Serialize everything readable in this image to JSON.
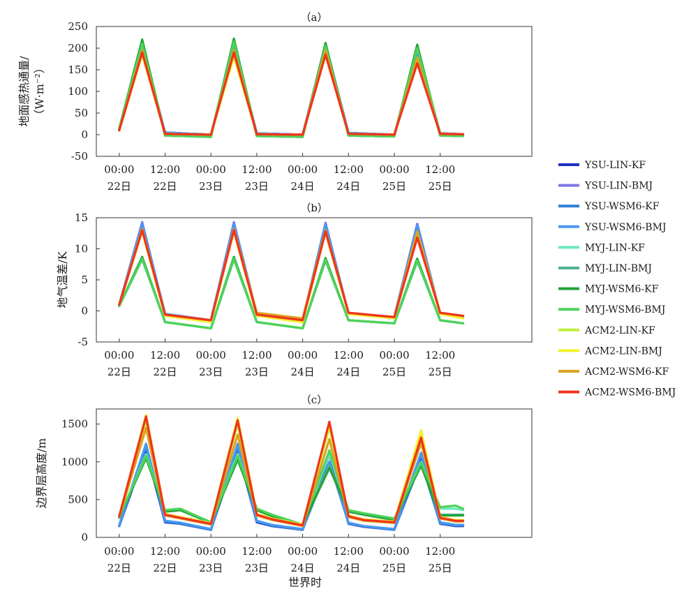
{
  "figure": {
    "xlabel": "世界时",
    "colors": {
      "YSU-LIN-KF": "#1f2fbf",
      "YSU-LIN-BMJ": "#7b78e6",
      "YSU-WSM6-KF": "#2f7fd6",
      "YSU-WSM6-BMJ": "#4a98f0",
      "MYJ-LIN-KF": "#6ee8c0",
      "MYJ-LIN-BMJ": "#52b090",
      "MYJ-WSM6-KF": "#22a33a",
      "MYJ-WSM6-BMJ": "#4ed35a",
      "ACM2-LIN-KF": "#bff03a",
      "ACM2-LIN-BMJ": "#f2f22e",
      "ACM2-WSM6-KF": "#dba420",
      "ACM2-WSM6-BMJ": "#f0341c"
    }
  },
  "legend": {
    "placement": "right",
    "entries": [
      "YSU-LIN-KF",
      "YSU-LIN-BMJ",
      "YSU-WSM6-KF",
      "YSU-WSM6-BMJ",
      "MYJ-LIN-KF",
      "MYJ-LIN-BMJ",
      "MYJ-WSM6-KF",
      "MYJ-WSM6-BMJ",
      "ACM2-LIN-KF",
      "ACM2-LIN-BMJ",
      "ACM2-WSM6-KF",
      "ACM2-WSM6-BMJ"
    ]
  },
  "chart_data": [
    {
      "type": "line",
      "title": "（a）",
      "ylabel_lines": [
        "地面感热通量/",
        "（W·m⁻²）"
      ],
      "ylim": [
        -50,
        250
      ],
      "yticks": [
        -50,
        0,
        50,
        100,
        150,
        200,
        250
      ],
      "xlim": [
        -6,
        108
      ],
      "xticks": [
        0,
        12,
        24,
        36,
        48,
        60,
        72,
        84
      ],
      "xtick_labels": [
        [
          "00:00",
          "22日"
        ],
        [
          "12:00",
          "22日"
        ],
        [
          "00:00",
          "23日"
        ],
        [
          "12:00",
          "23日"
        ],
        [
          "00:00",
          "24日"
        ],
        [
          "12:00",
          "24日"
        ],
        [
          "00:00",
          "25日"
        ],
        [
          "12:00",
          "25日"
        ]
      ],
      "x": [
        0,
        6,
        12,
        24,
        30,
        36,
        48,
        54,
        60,
        72,
        78,
        84,
        90
      ],
      "series": [
        {
          "name": "YSU-LIN-KF",
          "values": [
            12,
            200,
            5,
            0,
            205,
            3,
            0,
            205,
            4,
            0,
            190,
            3,
            1
          ]
        },
        {
          "name": "YSU-LIN-BMJ",
          "values": [
            12,
            205,
            5,
            0,
            210,
            3,
            0,
            210,
            4,
            0,
            195,
            3,
            1
          ]
        },
        {
          "name": "YSU-WSM6-KF",
          "values": [
            12,
            195,
            5,
            0,
            200,
            3,
            0,
            200,
            4,
            0,
            185,
            3,
            1
          ]
        },
        {
          "name": "YSU-WSM6-BMJ",
          "values": [
            12,
            200,
            5,
            0,
            205,
            3,
            0,
            205,
            4,
            0,
            190,
            3,
            1
          ]
        },
        {
          "name": "MYJ-LIN-KF",
          "values": [
            14,
            215,
            -2,
            -5,
            220,
            -3,
            -5,
            210,
            -2,
            -4,
            205,
            -2,
            -3
          ]
        },
        {
          "name": "MYJ-LIN-BMJ",
          "values": [
            14,
            212,
            -2,
            -5,
            218,
            -3,
            -5,
            208,
            -2,
            -4,
            202,
            -2,
            -3
          ]
        },
        {
          "name": "MYJ-WSM6-KF",
          "values": [
            14,
            220,
            -2,
            -5,
            222,
            -3,
            -5,
            212,
            -2,
            -4,
            208,
            -2,
            -3
          ]
        },
        {
          "name": "MYJ-WSM6-BMJ",
          "values": [
            14,
            210,
            -2,
            -5,
            215,
            -3,
            -5,
            205,
            -2,
            -4,
            200,
            -2,
            -3
          ]
        },
        {
          "name": "ACM2-LIN-KF",
          "values": [
            10,
            190,
            2,
            0,
            185,
            1,
            0,
            190,
            2,
            0,
            175,
            2,
            1
          ]
        },
        {
          "name": "ACM2-LIN-BMJ",
          "values": [
            10,
            185,
            2,
            0,
            180,
            1,
            0,
            185,
            2,
            0,
            170,
            2,
            1
          ]
        },
        {
          "name": "ACM2-WSM6-KF",
          "values": [
            10,
            195,
            2,
            0,
            195,
            1,
            0,
            195,
            2,
            0,
            178,
            2,
            1
          ]
        },
        {
          "name": "ACM2-WSM6-BMJ",
          "values": [
            10,
            190,
            2,
            0,
            190,
            1,
            0,
            185,
            2,
            0,
            165,
            2,
            1
          ]
        }
      ]
    },
    {
      "type": "line",
      "title": "（b）",
      "ylabel_lines": [
        "地气温差/K"
      ],
      "ylim": [
        -5,
        15
      ],
      "yticks": [
        -5,
        0,
        5,
        10,
        15
      ],
      "xlim": [
        -6,
        108
      ],
      "xticks": [
        0,
        12,
        24,
        36,
        48,
        60,
        72,
        84
      ],
      "xtick_labels": [
        [
          "00:00",
          "22日"
        ],
        [
          "12:00",
          "22日"
        ],
        [
          "00:00",
          "23日"
        ],
        [
          "12:00",
          "23日"
        ],
        [
          "00:00",
          "24日"
        ],
        [
          "12:00",
          "24日"
        ],
        [
          "00:00",
          "25日"
        ],
        [
          "12:00",
          "25日"
        ]
      ],
      "x": [
        0,
        6,
        12,
        24,
        30,
        36,
        48,
        54,
        60,
        72,
        78,
        84,
        90
      ],
      "series": [
        {
          "name": "YSU-LIN-KF",
          "values": [
            1,
            14,
            -0.5,
            -1.5,
            14,
            -0.5,
            -1.5,
            14,
            -0.5,
            -1,
            14,
            -0.5,
            -1
          ]
        },
        {
          "name": "YSU-LIN-BMJ",
          "values": [
            1,
            14.3,
            -0.5,
            -1.5,
            14.3,
            -0.5,
            -1.5,
            14.2,
            -0.5,
            -1,
            14,
            -0.5,
            -1
          ]
        },
        {
          "name": "YSU-WSM6-KF",
          "values": [
            1,
            13.8,
            -0.5,
            -1.5,
            13.8,
            -0.5,
            -1.5,
            13.8,
            -0.5,
            -1,
            13.5,
            -0.5,
            -1
          ]
        },
        {
          "name": "YSU-WSM6-BMJ",
          "values": [
            1,
            14,
            -0.5,
            -1.5,
            14,
            -0.5,
            -1.5,
            14,
            -0.5,
            -1,
            13.8,
            -0.5,
            -1
          ]
        },
        {
          "name": "MYJ-LIN-KF",
          "values": [
            0.8,
            8.5,
            -1.8,
            -2.8,
            8.5,
            -1.8,
            -2.8,
            8.3,
            -1.5,
            -2,
            8.2,
            -1.5,
            -2
          ]
        },
        {
          "name": "MYJ-LIN-BMJ",
          "values": [
            0.8,
            8.3,
            -1.8,
            -2.8,
            8.3,
            -1.8,
            -2.8,
            8.1,
            -1.5,
            -2,
            8,
            -1.5,
            -2
          ]
        },
        {
          "name": "MYJ-WSM6-KF",
          "values": [
            0.8,
            8.7,
            -1.8,
            -2.8,
            8.7,
            -1.8,
            -2.8,
            8.5,
            -1.5,
            -2,
            8.4,
            -1.5,
            -2
          ]
        },
        {
          "name": "MYJ-WSM6-BMJ",
          "values": [
            0.8,
            8.4,
            -1.8,
            -2.8,
            8.4,
            -1.8,
            -2.8,
            8.2,
            -1.5,
            -2,
            8.1,
            -1.5,
            -2
          ]
        },
        {
          "name": "ACM2-LIN-KF",
          "values": [
            1,
            13,
            -0.8,
            -1.8,
            13,
            -0.8,
            -1.8,
            12.8,
            -0.5,
            -1.2,
            12.5,
            -0.5,
            -1.2
          ]
        },
        {
          "name": "ACM2-LIN-BMJ",
          "values": [
            1,
            12.8,
            -0.8,
            -1.8,
            12.8,
            -0.8,
            -1.8,
            12.6,
            -0.5,
            -1.2,
            12.3,
            -0.5,
            -1.2
          ]
        },
        {
          "name": "ACM2-WSM6-KF",
          "values": [
            1,
            13.2,
            -0.6,
            -1.5,
            13.2,
            -0.3,
            -1.2,
            13,
            -0.3,
            -1,
            12.8,
            -0.3,
            -0.8
          ]
        },
        {
          "name": "ACM2-WSM6-BMJ",
          "values": [
            1,
            13,
            -0.6,
            -1.5,
            13,
            -0.6,
            -1.5,
            12.8,
            -0.3,
            -1,
            11.8,
            -0.3,
            -0.8
          ]
        }
      ]
    },
    {
      "type": "line",
      "title": "（c）",
      "ylabel_lines": [
        "边界层高度/m"
      ],
      "ylim": [
        0,
        1700
      ],
      "yticks": [
        0,
        500,
        1000,
        1500
      ],
      "xlim": [
        -6,
        108
      ],
      "xticks": [
        0,
        12,
        24,
        36,
        48,
        60,
        72,
        84
      ],
      "xtick_labels": [
        [
          "00:00",
          "22日"
        ],
        [
          "12:00",
          "22日"
        ],
        [
          "00:00",
          "23日"
        ],
        [
          "12:00",
          "23日"
        ],
        [
          "00:00",
          "24日"
        ],
        [
          "12:00",
          "24日"
        ],
        [
          "00:00",
          "25日"
        ],
        [
          "12:00",
          "25日"
        ]
      ],
      "x": [
        0,
        7,
        12,
        16,
        24,
        31,
        36,
        40,
        48,
        55,
        60,
        64,
        72,
        79,
        84,
        88,
        90
      ],
      "series": [
        {
          "name": "YSU-LIN-KF",
          "values": [
            150,
            1150,
            200,
            180,
            100,
            1150,
            200,
            150,
            100,
            1100,
            180,
            140,
            100,
            1050,
            180,
            150,
            150
          ]
        },
        {
          "name": "YSU-LIN-BMJ",
          "values": [
            160,
            1200,
            220,
            190,
            110,
            1200,
            220,
            160,
            110,
            1150,
            190,
            150,
            110,
            1100,
            190,
            160,
            160
          ]
        },
        {
          "name": "YSU-WSM6-KF",
          "values": [
            150,
            1200,
            210,
            185,
            100,
            1180,
            210,
            155,
            100,
            1000,
            185,
            145,
            100,
            1000,
            185,
            155,
            155
          ]
        },
        {
          "name": "YSU-WSM6-BMJ",
          "values": [
            160,
            1240,
            220,
            195,
            110,
            1240,
            220,
            165,
            110,
            1000,
            195,
            150,
            110,
            1120,
            200,
            165,
            165
          ]
        },
        {
          "name": "MYJ-LIN-KF",
          "values": [
            260,
            1100,
            360,
            380,
            200,
            1100,
            380,
            300,
            170,
            1100,
            360,
            320,
            250,
            1000,
            380,
            380,
            360
          ]
        },
        {
          "name": "MYJ-LIN-BMJ",
          "values": [
            260,
            1080,
            350,
            370,
            200,
            1060,
            370,
            290,
            170,
            950,
            350,
            310,
            240,
            980,
            300,
            300,
            300
          ]
        },
        {
          "name": "MYJ-WSM6-KF",
          "values": [
            260,
            1050,
            340,
            360,
            190,
            1030,
            360,
            280,
            165,
            920,
            340,
            300,
            230,
            950,
            290,
            290,
            290
          ]
        },
        {
          "name": "MYJ-WSM6-BMJ",
          "values": [
            270,
            1080,
            360,
            380,
            200,
            1080,
            380,
            300,
            170,
            1150,
            360,
            320,
            250,
            990,
            400,
            420,
            380
          ]
        },
        {
          "name": "ACM2-LIN-KF",
          "values": [
            280,
            1550,
            300,
            260,
            180,
            1500,
            300,
            240,
            160,
            1450,
            280,
            230,
            200,
            1350,
            260,
            220,
            220
          ]
        },
        {
          "name": "ACM2-LIN-BMJ",
          "values": [
            280,
            1620,
            310,
            270,
            190,
            1580,
            310,
            250,
            170,
            1500,
            290,
            240,
            210,
            1420,
            270,
            230,
            230
          ]
        },
        {
          "name": "ACM2-WSM6-KF",
          "values": [
            270,
            1450,
            290,
            250,
            170,
            1360,
            290,
            230,
            150,
            1300,
            270,
            220,
            190,
            1250,
            250,
            210,
            210
          ]
        },
        {
          "name": "ACM2-WSM6-BMJ",
          "values": [
            280,
            1600,
            300,
            260,
            180,
            1550,
            300,
            240,
            160,
            1530,
            280,
            230,
            200,
            1320,
            260,
            220,
            220
          ]
        }
      ]
    }
  ]
}
